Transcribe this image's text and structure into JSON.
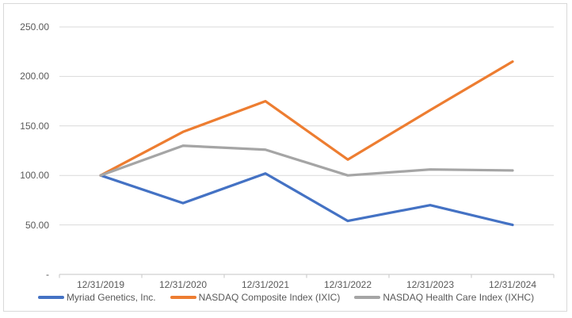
{
  "chart_data": {
    "type": "line",
    "title": "",
    "x_labels": [
      "12/31/2019",
      "12/31/2020",
      "12/31/2021",
      "12/31/2022",
      "12/31/2023",
      "12/31/2024"
    ],
    "y_ticks": [
      {
        "label": "250.00",
        "value": 250
      },
      {
        "label": "200.00",
        "value": 200
      },
      {
        "label": "150.00",
        "value": 150
      },
      {
        "label": "100.00",
        "value": 100
      },
      {
        "label": "50.00",
        "value": 50
      },
      {
        "label": "-",
        "value": 0
      }
    ],
    "ylim": [
      0,
      250
    ],
    "grid": true,
    "legend_position": "bottom",
    "series": [
      {
        "name": "Myriad Genetics, Inc.",
        "color": "#4472C4",
        "values": [
          100,
          72,
          102,
          54,
          70,
          50
        ]
      },
      {
        "name": "NASDAQ Composite Index (IXIC)",
        "color": "#ED7D31",
        "values": [
          100,
          144,
          175,
          116,
          166,
          215
        ]
      },
      {
        "name": "NASDAQ Health Care Index (IXHC)",
        "color": "#A5A5A5",
        "values": [
          100,
          130,
          126,
          100,
          106,
          105
        ]
      }
    ]
  },
  "colors": {
    "gridline": "#D9D9D9",
    "axis": "#C6C6C6",
    "border": "#D9D9D9",
    "text": "#595959",
    "background": "#FFFFFF"
  }
}
